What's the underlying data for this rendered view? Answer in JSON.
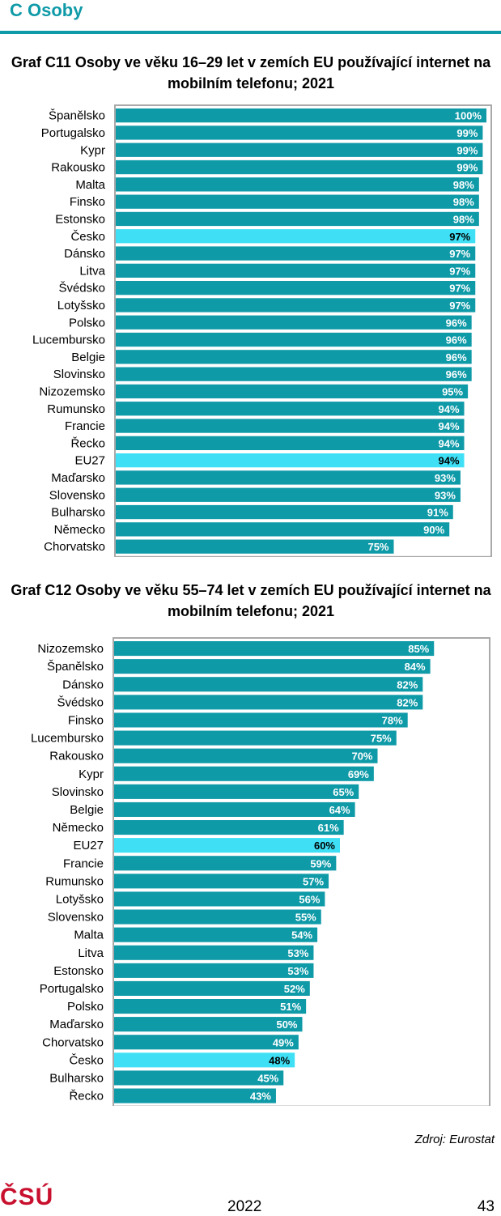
{
  "header": {
    "section": "C  Osoby"
  },
  "footer": {
    "source": "Zdroj: Eurostat",
    "logo": "ČSÚ",
    "year": "2022",
    "page": "43"
  },
  "colors": {
    "accent": "#0f9aa8",
    "bar": "#0f9aa8",
    "highlight": "#3fe0f5",
    "logo": "#c8102e"
  },
  "chart_data": [
    {
      "type": "bar",
      "orientation": "horizontal",
      "title": "Graf C11 Osoby ve věku 16–29 let v zemích EU používající internet na mobilním telefonu; 2021",
      "xlim": [
        0,
        100
      ],
      "categories": [
        "Španělsko",
        "Portugalsko",
        "Kypr",
        "Rakousko",
        "Malta",
        "Finsko",
        "Estonsko",
        "Česko",
        "Dánsko",
        "Litva",
        "Švédsko",
        "Lotyšsko",
        "Polsko",
        "Lucembursko",
        "Belgie",
        "Slovinsko",
        "Nizozemsko",
        "Rumunsko",
        "Francie",
        "Řecko",
        "EU27",
        "Maďarsko",
        "Slovensko",
        "Bulharsko",
        "Německo",
        "Chorvatsko"
      ],
      "values": [
        100,
        99,
        99,
        99,
        98,
        98,
        98,
        97,
        97,
        97,
        97,
        97,
        96,
        96,
        96,
        96,
        95,
        94,
        94,
        94,
        94,
        93,
        93,
        91,
        90,
        75
      ],
      "value_labels": [
        "100%",
        "99%",
        "99%",
        "99%",
        "98%",
        "98%",
        "98%",
        "97%",
        "97%",
        "97%",
        "97%",
        "97%",
        "96%",
        "96%",
        "96%",
        "96%",
        "95%",
        "94%",
        "94%",
        "94%",
        "94%",
        "93%",
        "93%",
        "91%",
        "90%",
        "75%"
      ],
      "highlight": [
        "Česko",
        "EU27"
      ]
    },
    {
      "type": "bar",
      "orientation": "horizontal",
      "title": "Graf C12 Osoby ve věku 55–74 let v zemích EU používající internet na mobilním telefonu; 2021",
      "xlim": [
        0,
        100
      ],
      "categories": [
        "Nizozemsko",
        "Španělsko",
        "Dánsko",
        "Švédsko",
        "Finsko",
        "Lucembursko",
        "Rakousko",
        "Kypr",
        "Slovinsko",
        "Belgie",
        "Německo",
        "EU27",
        "Francie",
        "Rumunsko",
        "Lotyšsko",
        "Slovensko",
        "Malta",
        "Litva",
        "Estonsko",
        "Portugalsko",
        "Polsko",
        "Maďarsko",
        "Chorvatsko",
        "Česko",
        "Bulharsko",
        "Řecko"
      ],
      "values": [
        85,
        84,
        82,
        82,
        78,
        75,
        70,
        69,
        65,
        64,
        61,
        60,
        59,
        57,
        56,
        55,
        54,
        53,
        53,
        52,
        51,
        50,
        49,
        48,
        45,
        43
      ],
      "value_labels": [
        "85%",
        "84%",
        "82%",
        "82%",
        "78%",
        "75%",
        "70%",
        "69%",
        "65%",
        "64%",
        "61%",
        "60%",
        "59%",
        "57%",
        "56%",
        "55%",
        "54%",
        "53%",
        "53%",
        "52%",
        "51%",
        "50%",
        "49%",
        "48%",
        "45%",
        "43%"
      ],
      "highlight": [
        "EU27",
        "Česko"
      ]
    }
  ]
}
